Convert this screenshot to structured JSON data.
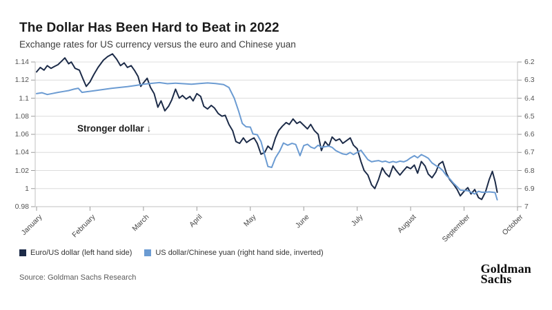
{
  "header": {
    "title": "The Dollar Has Been Hard to Beat in 2022",
    "subtitle": "Exchange rates for US currency versus the euro and Chinese yuan"
  },
  "annotation": {
    "text": "Stronger dollar ↓"
  },
  "legend": [
    {
      "label": "Euro/US dollar (left hand side)",
      "color": "#1c2b48"
    },
    {
      "label": "US dollar/Chinese yuan (right hand side, inverted)",
      "color": "#6b9bd2"
    }
  ],
  "source": "Source: Goldman Sachs Research",
  "logo": {
    "line1": "Goldman",
    "line2": "Sachs"
  },
  "colors": {
    "euro_line": "#1c2b48",
    "yuan_line": "#6b9bd2",
    "gridline": "#dcdcdc",
    "axis": "#c2c2c2",
    "tick": "#9a9a9a"
  },
  "chart_data": {
    "type": "line",
    "title": "The Dollar Has Been Hard to Beat in 2022",
    "subtitle": "Exchange rates for US currency versus the euro and Chinese yuan",
    "x_unit": "month_index (0 = January tick ... 9 = October tick)",
    "x_axis": {
      "labels": [
        "January",
        "February",
        "March",
        "April",
        "May",
        "June",
        "July",
        "August",
        "September",
        "October"
      ]
    },
    "left_axis": {
      "name": "Euro/US dollar",
      "ticks": [
        "1.14",
        "1.12",
        "1.1",
        "1.08",
        "1.06",
        "1.04",
        "1.02",
        "1",
        "0.98"
      ],
      "range": [
        1.14,
        0.98
      ]
    },
    "right_axis": {
      "name": "US dollar/Chinese yuan",
      "ticks": [
        "6.2",
        "6.3",
        "6.4",
        "6.5",
        "6.6",
        "6.7",
        "6.8",
        "6.9",
        "7"
      ],
      "range": [
        6.2,
        7.0
      ],
      "inverted": true
    },
    "grid": true,
    "legend_position": "bottom-left",
    "series": [
      {
        "name": "Euro/US dollar (left hand side)",
        "axis": "left",
        "color": "#1c2b48",
        "points": [
          [
            0.0,
            1.129
          ],
          [
            0.07,
            1.134
          ],
          [
            0.14,
            1.131
          ],
          [
            0.2,
            1.136
          ],
          [
            0.27,
            1.133
          ],
          [
            0.33,
            1.135
          ],
          [
            0.4,
            1.137
          ],
          [
            0.47,
            1.141
          ],
          [
            0.53,
            1.1445
          ],
          [
            0.6,
            1.138
          ],
          [
            0.65,
            1.14
          ],
          [
            0.72,
            1.133
          ],
          [
            0.8,
            1.131
          ],
          [
            0.87,
            1.121
          ],
          [
            0.93,
            1.113
          ],
          [
            1.0,
            1.118
          ],
          [
            1.07,
            1.126
          ],
          [
            1.15,
            1.134
          ],
          [
            1.25,
            1.142
          ],
          [
            1.33,
            1.146
          ],
          [
            1.42,
            1.149
          ],
          [
            1.5,
            1.143
          ],
          [
            1.57,
            1.136
          ],
          [
            1.64,
            1.139
          ],
          [
            1.7,
            1.134
          ],
          [
            1.77,
            1.136
          ],
          [
            1.84,
            1.13
          ],
          [
            1.9,
            1.124
          ],
          [
            1.95,
            1.113
          ],
          [
            2.0,
            1.117
          ],
          [
            2.07,
            1.122
          ],
          [
            2.13,
            1.112
          ],
          [
            2.2,
            1.105
          ],
          [
            2.27,
            1.09
          ],
          [
            2.33,
            1.097
          ],
          [
            2.4,
            1.086
          ],
          [
            2.47,
            1.091
          ],
          [
            2.53,
            1.098
          ],
          [
            2.6,
            1.11
          ],
          [
            2.67,
            1.1
          ],
          [
            2.73,
            1.103
          ],
          [
            2.8,
            1.099
          ],
          [
            2.87,
            1.102
          ],
          [
            2.93,
            1.097
          ],
          [
            3.0,
            1.105
          ],
          [
            3.07,
            1.102
          ],
          [
            3.13,
            1.091
          ],
          [
            3.2,
            1.088
          ],
          [
            3.27,
            1.092
          ],
          [
            3.33,
            1.089
          ],
          [
            3.4,
            1.083
          ],
          [
            3.47,
            1.08
          ],
          [
            3.53,
            1.081
          ],
          [
            3.6,
            1.071
          ],
          [
            3.67,
            1.064
          ],
          [
            3.73,
            1.052
          ],
          [
            3.8,
            1.05
          ],
          [
            3.87,
            1.056
          ],
          [
            3.93,
            1.051
          ],
          [
            4.0,
            1.054
          ],
          [
            4.07,
            1.056
          ],
          [
            4.13,
            1.05
          ],
          [
            4.2,
            1.038
          ],
          [
            4.27,
            1.04
          ],
          [
            4.33,
            1.047
          ],
          [
            4.4,
            1.043
          ],
          [
            4.47,
            1.056
          ],
          [
            4.53,
            1.064
          ],
          [
            4.6,
            1.069
          ],
          [
            4.67,
            1.073
          ],
          [
            4.73,
            1.071
          ],
          [
            4.8,
            1.077
          ],
          [
            4.87,
            1.072
          ],
          [
            4.93,
            1.074
          ],
          [
            5.0,
            1.07
          ],
          [
            5.07,
            1.066
          ],
          [
            5.13,
            1.071
          ],
          [
            5.2,
            1.064
          ],
          [
            5.27,
            1.06
          ],
          [
            5.33,
            1.042
          ],
          [
            5.4,
            1.052
          ],
          [
            5.47,
            1.047
          ],
          [
            5.53,
            1.057
          ],
          [
            5.6,
            1.053
          ],
          [
            5.67,
            1.055
          ],
          [
            5.73,
            1.05
          ],
          [
            5.8,
            1.053
          ],
          [
            5.87,
            1.056
          ],
          [
            5.93,
            1.048
          ],
          [
            6.0,
            1.044
          ],
          [
            6.07,
            1.03
          ],
          [
            6.13,
            1.02
          ],
          [
            6.2,
            1.015
          ],
          [
            6.27,
            1.004
          ],
          [
            6.33,
            1.0
          ],
          [
            6.4,
            1.01
          ],
          [
            6.47,
            1.023
          ],
          [
            6.53,
            1.017
          ],
          [
            6.6,
            1.013
          ],
          [
            6.67,
            1.025
          ],
          [
            6.73,
            1.02
          ],
          [
            6.8,
            1.015
          ],
          [
            6.87,
            1.02
          ],
          [
            6.93,
            1.024
          ],
          [
            7.0,
            1.022
          ],
          [
            7.07,
            1.026
          ],
          [
            7.13,
            1.017
          ],
          [
            7.2,
            1.03
          ],
          [
            7.27,
            1.025
          ],
          [
            7.33,
            1.016
          ],
          [
            7.4,
            1.012
          ],
          [
            7.47,
            1.018
          ],
          [
            7.53,
            1.027
          ],
          [
            7.6,
            1.03
          ],
          [
            7.67,
            1.017
          ],
          [
            7.73,
            1.01
          ],
          [
            7.8,
            1.005
          ],
          [
            7.87,
            0.999
          ],
          [
            7.93,
            0.992
          ],
          [
            8.0,
            0.997
          ],
          [
            8.07,
            1.001
          ],
          [
            8.13,
            0.994
          ],
          [
            8.2,
            0.999
          ],
          [
            8.27,
            0.99
          ],
          [
            8.33,
            0.988
          ],
          [
            8.4,
            0.996
          ],
          [
            8.47,
            1.01
          ],
          [
            8.53,
            1.019
          ],
          [
            8.58,
            1.008
          ],
          [
            8.62,
            0.996
          ]
        ]
      },
      {
        "name": "US dollar/Chinese yuan (right hand side, inverted)",
        "axis": "right",
        "color": "#6b9bd2",
        "points": [
          [
            0.0,
            6.375
          ],
          [
            0.1,
            6.37
          ],
          [
            0.2,
            6.38
          ],
          [
            0.3,
            6.374
          ],
          [
            0.4,
            6.368
          ],
          [
            0.5,
            6.363
          ],
          [
            0.6,
            6.358
          ],
          [
            0.7,
            6.35
          ],
          [
            0.78,
            6.345
          ],
          [
            0.85,
            6.368
          ],
          [
            0.95,
            6.364
          ],
          [
            1.1,
            6.358
          ],
          [
            1.25,
            6.352
          ],
          [
            1.4,
            6.346
          ],
          [
            1.55,
            6.341
          ],
          [
            1.7,
            6.336
          ],
          [
            1.85,
            6.33
          ],
          [
            2.0,
            6.323
          ],
          [
            2.15,
            6.318
          ],
          [
            2.3,
            6.314
          ],
          [
            2.45,
            6.32
          ],
          [
            2.6,
            6.317
          ],
          [
            2.75,
            6.32
          ],
          [
            2.9,
            6.323
          ],
          [
            3.05,
            6.319
          ],
          [
            3.2,
            6.316
          ],
          [
            3.35,
            6.319
          ],
          [
            3.5,
            6.325
          ],
          [
            3.6,
            6.341
          ],
          [
            3.7,
            6.4
          ],
          [
            3.78,
            6.47
          ],
          [
            3.85,
            6.54
          ],
          [
            3.92,
            6.558
          ],
          [
            4.0,
            6.56
          ],
          [
            4.05,
            6.598
          ],
          [
            4.13,
            6.602
          ],
          [
            4.2,
            6.64
          ],
          [
            4.27,
            6.716
          ],
          [
            4.33,
            6.778
          ],
          [
            4.4,
            6.783
          ],
          [
            4.47,
            6.73
          ],
          [
            4.55,
            6.692
          ],
          [
            4.62,
            6.648
          ],
          [
            4.7,
            6.66
          ],
          [
            4.78,
            6.65
          ],
          [
            4.85,
            6.656
          ],
          [
            4.93,
            6.718
          ],
          [
            5.0,
            6.662
          ],
          [
            5.07,
            6.655
          ],
          [
            5.13,
            6.67
          ],
          [
            5.2,
            6.678
          ],
          [
            5.27,
            6.66
          ],
          [
            5.33,
            6.672
          ],
          [
            5.4,
            6.668
          ],
          [
            5.47,
            6.665
          ],
          [
            5.53,
            6.672
          ],
          [
            5.6,
            6.69
          ],
          [
            5.67,
            6.7
          ],
          [
            5.73,
            6.708
          ],
          [
            5.8,
            6.712
          ],
          [
            5.87,
            6.7
          ],
          [
            5.93,
            6.712
          ],
          [
            6.0,
            6.7
          ],
          [
            6.07,
            6.688
          ],
          [
            6.13,
            6.712
          ],
          [
            6.2,
            6.74
          ],
          [
            6.27,
            6.752
          ],
          [
            6.33,
            6.748
          ],
          [
            6.4,
            6.745
          ],
          [
            6.47,
            6.752
          ],
          [
            6.53,
            6.748
          ],
          [
            6.6,
            6.756
          ],
          [
            6.67,
            6.75
          ],
          [
            6.73,
            6.755
          ],
          [
            6.8,
            6.748
          ],
          [
            6.87,
            6.752
          ],
          [
            6.93,
            6.745
          ],
          [
            7.0,
            6.73
          ],
          [
            7.07,
            6.718
          ],
          [
            7.13,
            6.73
          ],
          [
            7.2,
            6.712
          ],
          [
            7.27,
            6.722
          ],
          [
            7.33,
            6.732
          ],
          [
            7.4,
            6.758
          ],
          [
            7.47,
            6.772
          ],
          [
            7.53,
            6.782
          ],
          [
            7.6,
            6.8
          ],
          [
            7.67,
            6.828
          ],
          [
            7.73,
            6.845
          ],
          [
            7.8,
            6.87
          ],
          [
            7.87,
            6.89
          ],
          [
            7.93,
            6.908
          ],
          [
            8.0,
            6.91
          ],
          [
            8.07,
            6.912
          ],
          [
            8.13,
            6.92
          ],
          [
            8.2,
            6.93
          ],
          [
            8.27,
            6.915
          ],
          [
            8.33,
            6.92
          ],
          [
            8.4,
            6.92
          ],
          [
            8.47,
            6.918
          ],
          [
            8.53,
            6.92
          ],
          [
            8.58,
            6.922
          ],
          [
            8.62,
            6.962
          ]
        ]
      }
    ]
  }
}
